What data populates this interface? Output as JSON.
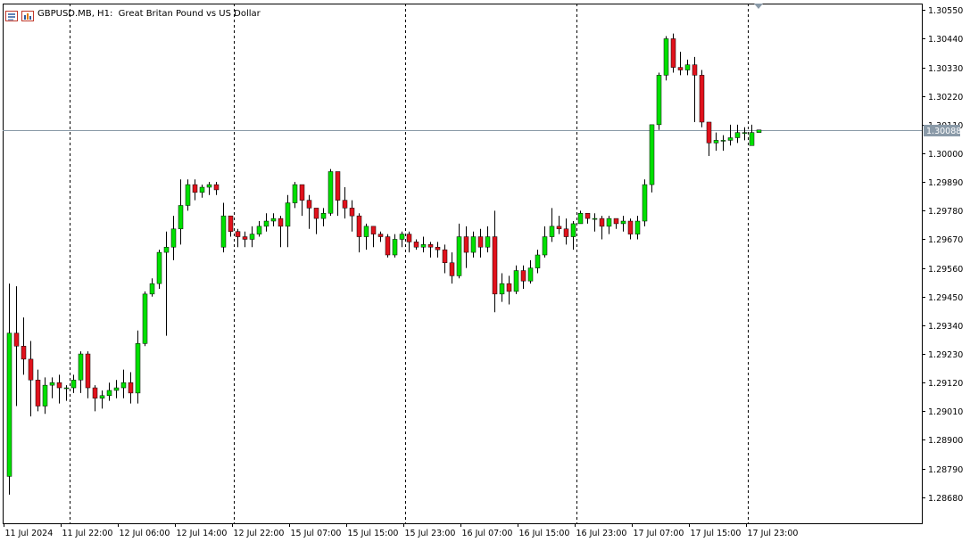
{
  "window": {
    "symbol": "GBPUSD.MB",
    "timeframe": "H1",
    "description": "Great Britan Pound vs US Dollar"
  },
  "toolbar_icons": [
    "chart-grid-icon",
    "bar-chart-icon"
  ],
  "colors": {
    "bull": "#00e000",
    "bear": "#e0121c",
    "wick": "#000000",
    "axis": "#000000",
    "separator": "#000000",
    "bid_line": "#8a9aa8",
    "bid_tag": "#8a9aa8"
  },
  "chart_data": {
    "type": "candlestick",
    "symbol": "GBPUSD.MB",
    "timeframe": "H1",
    "ylim": [
      1.2858,
      1.30575
    ],
    "y_ticks": [
      1.3055,
      1.3044,
      1.3033,
      1.3022,
      1.3011,
      1.3,
      1.2989,
      1.2978,
      1.2967,
      1.2956,
      1.2945,
      1.2934,
      1.2923,
      1.2912,
      1.2901,
      1.289,
      1.2879,
      1.2868
    ],
    "x_labels": [
      {
        "bar": 0,
        "label": "11 Jul 2024"
      },
      {
        "bar": 8,
        "label": "11 Jul 22:00"
      },
      {
        "bar": 16,
        "label": "12 Jul 06:00"
      },
      {
        "bar": 24,
        "label": "12 Jul 14:00"
      },
      {
        "bar": 32,
        "label": "12 Jul 22:00"
      },
      {
        "bar": 40,
        "label": "15 Jul 07:00"
      },
      {
        "bar": 48,
        "label": "15 Jul 15:00"
      },
      {
        "bar": 56,
        "label": "15 Jul 23:00"
      },
      {
        "bar": 64,
        "label": "16 Jul 07:00"
      },
      {
        "bar": 72,
        "label": "16 Jul 15:00"
      },
      {
        "bar": 80,
        "label": "16 Jul 23:00"
      },
      {
        "bar": 88,
        "label": "17 Jul 07:00"
      },
      {
        "bar": 96,
        "label": "17 Jul 15:00"
      },
      {
        "bar": 104,
        "label": "17 Jul 23:00"
      }
    ],
    "day_separators_after_bar": [
      9,
      32,
      56,
      80,
      104
    ],
    "bid_price": 1.30088,
    "bid_label": "1.30088",
    "candles": [
      [
        1.2876,
        1.2931,
        1.2869,
        1.295
      ],
      [
        1.2931,
        1.2926,
        1.2903,
        1.2949
      ],
      [
        1.2926,
        1.2921,
        1.2915,
        1.2937
      ],
      [
        1.2921,
        1.2913,
        1.2899,
        1.2928
      ],
      [
        1.2913,
        1.2903,
        1.2901,
        1.2917
      ],
      [
        1.2903,
        1.2911,
        1.29,
        1.2914
      ],
      [
        1.2911,
        1.2912,
        1.2906,
        1.2914
      ],
      [
        1.2912,
        1.291,
        1.2904,
        1.2915
      ],
      [
        1.291,
        1.291,
        1.2905,
        1.2911
      ],
      [
        1.291,
        1.2913,
        1.2908,
        1.2915
      ],
      [
        1.2913,
        1.2923,
        1.2908,
        1.2924
      ],
      [
        1.2923,
        1.291,
        1.2906,
        1.2924
      ],
      [
        1.291,
        1.2906,
        1.2901,
        1.2911
      ],
      [
        1.2906,
        1.2907,
        1.2902,
        1.2909
      ],
      [
        1.2907,
        1.2909,
        1.2905,
        1.2912
      ],
      [
        1.2909,
        1.291,
        1.2906,
        1.2913
      ],
      [
        1.291,
        1.2912,
        1.2906,
        1.2917
      ],
      [
        1.2912,
        1.2908,
        1.2904,
        1.2916
      ],
      [
        1.2908,
        1.2927,
        1.2904,
        1.2932
      ],
      [
        1.2927,
        1.2946,
        1.2926,
        1.2947
      ],
      [
        1.2946,
        1.295,
        1.2945,
        1.2952
      ],
      [
        1.295,
        1.2962,
        1.2948,
        1.2963
      ],
      [
        1.2962,
        1.2964,
        1.293,
        1.297
      ],
      [
        1.2964,
        1.2971,
        1.2959,
        1.2976
      ],
      [
        1.2971,
        1.298,
        1.2965,
        1.299
      ],
      [
        1.298,
        1.2988,
        1.2978,
        1.299
      ],
      [
        1.2988,
        1.2985,
        1.2982,
        1.299
      ],
      [
        1.2985,
        1.2987,
        1.2983,
        1.2988
      ],
      [
        1.2987,
        1.2988,
        1.2984,
        1.2989
      ],
      [
        1.2988,
        1.2986,
        1.2984,
        1.2989
      ],
      [
        1.2964,
        1.2976,
        1.2962,
        1.2981
      ],
      [
        1.2976,
        1.297,
        1.2968,
        1.2976
      ],
      [
        1.297,
        1.2968,
        1.2964,
        1.2971
      ],
      [
        1.2968,
        1.2967,
        1.2964,
        1.297
      ],
      [
        1.2967,
        1.2969,
        1.2964,
        1.2972
      ],
      [
        1.2969,
        1.2972,
        1.2968,
        1.2974
      ],
      [
        1.2972,
        1.2974,
        1.297,
        1.2977
      ],
      [
        1.2974,
        1.2975,
        1.2972,
        1.2977
      ],
      [
        1.2975,
        1.2972,
        1.2964,
        1.2976
      ],
      [
        1.2972,
        1.2981,
        1.2964,
        1.2984
      ],
      [
        1.2981,
        1.2988,
        1.2979,
        1.2989
      ],
      [
        1.2988,
        1.2982,
        1.2976,
        1.2988
      ],
      [
        1.2982,
        1.2979,
        1.2971,
        1.2984
      ],
      [
        1.2979,
        1.2975,
        1.2969,
        1.2978
      ],
      [
        1.2975,
        1.2977,
        1.2972,
        1.2979
      ],
      [
        1.2977,
        1.2993,
        1.2976,
        1.2994
      ],
      [
        1.2993,
        1.2982,
        1.2976,
        1.2993
      ],
      [
        1.2982,
        1.2979,
        1.2975,
        1.2987
      ],
      [
        1.2979,
        1.2976,
        1.297,
        1.2982
      ],
      [
        1.2976,
        1.2968,
        1.2962,
        1.2977
      ],
      [
        1.2968,
        1.2972,
        1.2963,
        1.2973
      ],
      [
        1.2972,
        1.2969,
        1.2964,
        1.2972
      ],
      [
        1.2969,
        1.2968,
        1.2966,
        1.297
      ],
      [
        1.2968,
        1.2961,
        1.296,
        1.2969
      ],
      [
        1.2961,
        1.2967,
        1.296,
        1.2969
      ],
      [
        1.2967,
        1.2969,
        1.2964,
        1.297
      ],
      [
        1.2969,
        1.2966,
        1.2962,
        1.297
      ],
      [
        1.2966,
        1.2964,
        1.2963,
        1.2967
      ],
      [
        1.2964,
        1.2965,
        1.2962,
        1.2968
      ],
      [
        1.2965,
        1.2964,
        1.296,
        1.2966
      ],
      [
        1.2964,
        1.2963,
        1.296,
        1.2966
      ],
      [
        1.2963,
        1.2958,
        1.2954,
        1.2965
      ],
      [
        1.2958,
        1.2953,
        1.295,
        1.2962
      ],
      [
        1.2953,
        1.2968,
        1.2952,
        1.2973
      ],
      [
        1.2968,
        1.2962,
        1.2956,
        1.2972
      ],
      [
        1.2962,
        1.2968,
        1.296,
        1.297
      ],
      [
        1.2968,
        1.2964,
        1.296,
        1.2971
      ],
      [
        1.2964,
        1.2968,
        1.2962,
        1.2972
      ],
      [
        1.2968,
        1.2946,
        1.2939,
        1.2978
      ],
      [
        1.2946,
        1.295,
        1.2943,
        1.2954
      ],
      [
        1.295,
        1.2947,
        1.2942,
        1.2953
      ],
      [
        1.2947,
        1.2955,
        1.2946,
        1.2957
      ],
      [
        1.2955,
        1.2951,
        1.2948,
        1.2957
      ],
      [
        1.2951,
        1.2956,
        1.295,
        1.2959
      ],
      [
        1.2956,
        1.2961,
        1.2954,
        1.2963
      ],
      [
        1.2961,
        1.2968,
        1.296,
        1.2972
      ],
      [
        1.2968,
        1.2972,
        1.2966,
        1.2979
      ],
      [
        1.2972,
        1.2971,
        1.2969,
        1.2976
      ],
      [
        1.2971,
        1.2968,
        1.2965,
        1.2975
      ],
      [
        1.2968,
        1.2973,
        1.2963,
        1.2974
      ],
      [
        1.2973,
        1.2977,
        1.2973,
        1.2978
      ],
      [
        1.2977,
        1.2975,
        1.2973,
        1.2977
      ],
      [
        1.2975,
        1.2975,
        1.297,
        1.2977
      ],
      [
        1.2975,
        1.2972,
        1.2967,
        1.2976
      ],
      [
        1.2972,
        1.2975,
        1.2969,
        1.2976
      ],
      [
        1.2975,
        1.2973,
        1.2971,
        1.2975
      ],
      [
        1.2973,
        1.2974,
        1.297,
        1.2976
      ],
      [
        1.2974,
        1.2969,
        1.2967,
        1.2975
      ],
      [
        1.2969,
        1.2974,
        1.2967,
        1.2976
      ],
      [
        1.2974,
        1.2988,
        1.2972,
        1.299
      ],
      [
        1.2988,
        1.3011,
        1.2985,
        1.3011
      ],
      [
        1.3011,
        1.303,
        1.3009,
        1.3031
      ],
      [
        1.303,
        1.3044,
        1.3028,
        1.3045
      ],
      [
        1.3044,
        1.3033,
        1.3031,
        1.3046
      ],
      [
        1.3033,
        1.3032,
        1.303,
        1.3039
      ],
      [
        1.3032,
        1.3034,
        1.303,
        1.3036
      ],
      [
        1.3034,
        1.303,
        1.3012,
        1.3037
      ],
      [
        1.303,
        1.3012,
        1.301,
        1.3032
      ],
      [
        1.3012,
        1.3004,
        1.2999,
        1.3012
      ],
      [
        1.3004,
        1.3005,
        1.3001,
        1.3008
      ],
      [
        1.3005,
        1.3005,
        1.3001,
        1.3007
      ],
      [
        1.3005,
        1.3006,
        1.3003,
        1.3011
      ],
      [
        1.3006,
        1.3008,
        1.3004,
        1.3011
      ],
      [
        1.3008,
        1.3008,
        1.3005,
        1.301
      ],
      [
        1.3003,
        1.3008,
        1.3003,
        1.3011
      ],
      [
        1.3008,
        1.3009,
        1.3008,
        1.3009
      ]
    ]
  }
}
